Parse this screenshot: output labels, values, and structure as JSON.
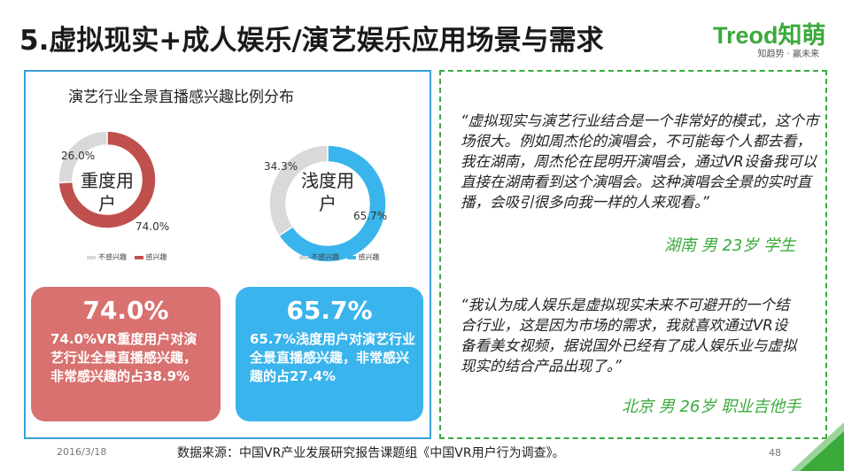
{
  "page_title": "5.虚拟现实+成人娱乐/演艺娱乐应用场景与需求",
  "logo": {
    "main": "Treod知萌",
    "sub": "知趋势 · 赢未来"
  },
  "colors": {
    "red": "#c0504d",
    "grey": "#d9d9d9",
    "blue": "#3ab4ec",
    "green": "#3aaa3a",
    "red_card": "#d8716f"
  },
  "left": {
    "chart_heading": "演艺行业全景直播感兴趣比例分布",
    "legend": {
      "not_interested": "不感兴趣",
      "interested": "感兴趣"
    },
    "cards": [
      {
        "big": "74.0%",
        "text": "74.0%VR重度用户对演艺行业全景直播感兴趣，非常感兴趣的占38.9%"
      },
      {
        "big": "65.7%",
        "text": "65.7%浅度用户对演艺行业全景直播感兴趣，非常感兴趣的占27.4%"
      }
    ]
  },
  "chart_data": [
    {
      "type": "pie",
      "title": "重度用户",
      "categories": [
        "不感兴趣",
        "感兴趣"
      ],
      "values": [
        26.0,
        74.0
      ],
      "labels": [
        "26.0%",
        "74.0%"
      ],
      "colors": [
        "#d9d9d9",
        "#c0504d"
      ],
      "legend_placement": "bottom"
    },
    {
      "type": "pie",
      "title": "浅度用户",
      "categories": [
        "不感兴趣",
        "感兴趣"
      ],
      "values": [
        34.3,
        65.7
      ],
      "labels": [
        "34.3%",
        "65.7%"
      ],
      "colors": [
        "#d9d9d9",
        "#3ab4ec"
      ],
      "legend_placement": "bottom"
    }
  ],
  "quotes": [
    {
      "text": "“虚拟现实与演艺行业结合是一个非常好的模式，这个市场很大。例如周杰伦的演唱会，不可能每个人都去看，我在湖南，周杰伦在昆明开演唱会，通过VR设备我可以直接在湖南看到这个演唱会。这种演唱会全景的实时直播，会吸引很多向我一样的人来观看。”",
      "attribution": "湖南  男  23岁  学生"
    },
    {
      "text": "“我认为成人娱乐是虚拟现实未来不可避开的一个结合行业，这是因为市场的需求，我就喜欢通过VR设备看美女视频，据说国外已经有了成人娱乐业与虚拟现实的结合产品出现了。”",
      "attribution": "北京 男 26岁  职业吉他手"
    }
  ],
  "footer": {
    "date": "2016/3/18",
    "source": "数据来源：中国VR产业发展研究报告课题组《中国VR用户行为调查》。",
    "page": "48"
  }
}
